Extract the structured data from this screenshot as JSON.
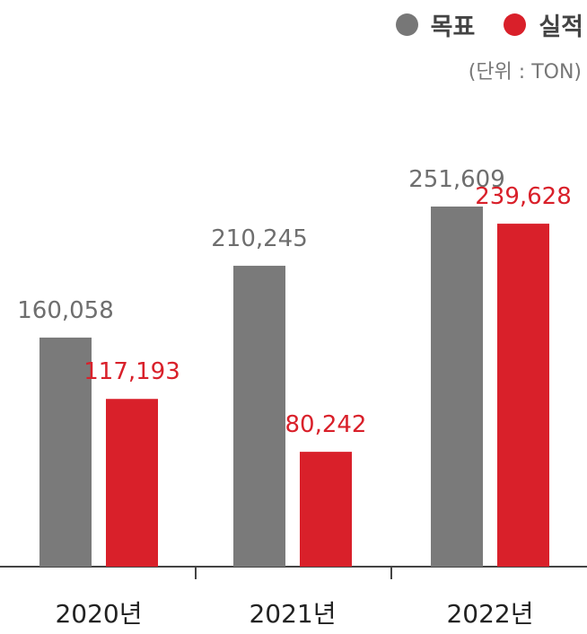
{
  "legend": {
    "target_label": "목표",
    "actual_label": "실적"
  },
  "unit_label": "(단위 : TON)",
  "colors": {
    "target": "#7a7a7a",
    "actual": "#d9202a",
    "axis": "#444444",
    "target_text": "#6e6e6e",
    "actual_text": "#d9202a"
  },
  "chart_data": {
    "type": "bar",
    "categories": [
      "2020년",
      "2021년",
      "2022년"
    ],
    "series": [
      {
        "name": "목표",
        "values": [
          160058,
          210245,
          251609
        ],
        "labels": [
          "160,058",
          "210,245",
          "251,609"
        ]
      },
      {
        "name": "실적",
        "values": [
          117193,
          80242,
          239628
        ],
        "labels": [
          "117,193",
          "80,242",
          "239,628"
        ]
      }
    ],
    "ylim": [
      0,
      283000
    ],
    "grid": false,
    "legend_position": "top-right"
  }
}
